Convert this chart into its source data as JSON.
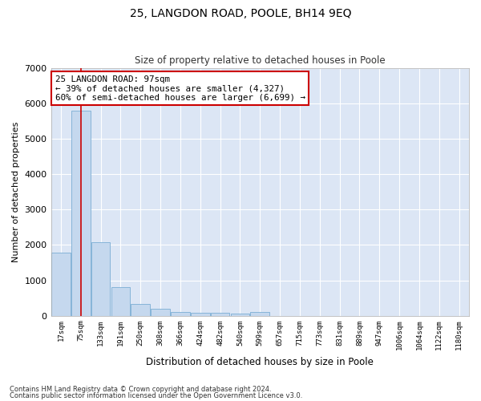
{
  "title": "25, LANGDON ROAD, POOLE, BH14 9EQ",
  "subtitle": "Size of property relative to detached houses in Poole",
  "xlabel": "Distribution of detached houses by size in Poole",
  "ylabel": "Number of detached properties",
  "bar_color": "#c5d8ee",
  "bar_edge_color": "#7aadd4",
  "background_color": "#dce6f5",
  "grid_color": "#ffffff",
  "vline_color": "#cc0000",
  "vline_x": 1,
  "annotation_text": "25 LANGDON ROAD: 97sqm\n← 39% of detached houses are smaller (4,327)\n60% of semi-detached houses are larger (6,699) →",
  "annotation_box_facecolor": "#ffffff",
  "annotation_box_edgecolor": "#cc0000",
  "footnote1": "Contains HM Land Registry data © Crown copyright and database right 2024.",
  "footnote2": "Contains public sector information licensed under the Open Government Licence v3.0.",
  "bin_labels": [
    "17sqm",
    "75sqm",
    "133sqm",
    "191sqm",
    "250sqm",
    "308sqm",
    "366sqm",
    "424sqm",
    "482sqm",
    "540sqm",
    "599sqm",
    "657sqm",
    "715sqm",
    "773sqm",
    "831sqm",
    "889sqm",
    "947sqm",
    "1006sqm",
    "1064sqm",
    "1122sqm",
    "1180sqm"
  ],
  "bar_heights": [
    1780,
    5800,
    2080,
    800,
    340,
    190,
    110,
    90,
    75,
    65,
    100,
    0,
    0,
    0,
    0,
    0,
    0,
    0,
    0,
    0,
    0
  ],
  "ylim": [
    0,
    7000
  ],
  "yticks": [
    0,
    1000,
    2000,
    3000,
    4000,
    5000,
    6000,
    7000
  ],
  "fig_width": 6.0,
  "fig_height": 5.0,
  "dpi": 100
}
